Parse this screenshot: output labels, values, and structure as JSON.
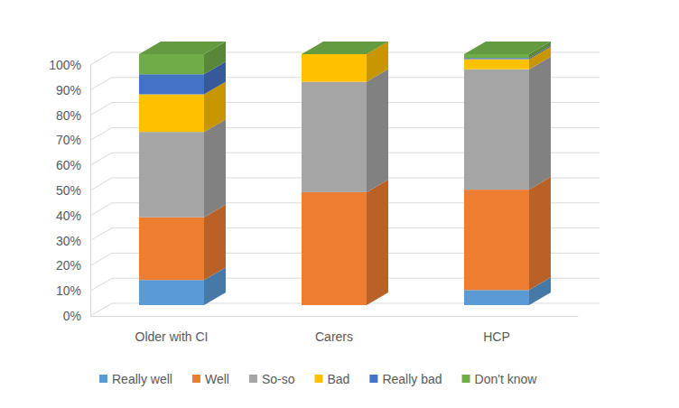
{
  "chart_data": {
    "type": "bar",
    "stacked": true,
    "grid": true,
    "legend": "bottom",
    "categories": [
      "Older with CI",
      "Carers",
      "HCP"
    ],
    "ylim": [
      0,
      100
    ],
    "yticks": [
      {
        "value": 0,
        "label": "0%"
      },
      {
        "value": 10,
        "label": "10%"
      },
      {
        "value": 20,
        "label": "20%"
      },
      {
        "value": 30,
        "label": "30%"
      },
      {
        "value": 40,
        "label": "40%"
      },
      {
        "value": 50,
        "label": "50%"
      },
      {
        "value": 60,
        "label": "60%"
      },
      {
        "value": 70,
        "label": "70%"
      },
      {
        "value": 80,
        "label": "80%"
      },
      {
        "value": 90,
        "label": "90%"
      },
      {
        "value": 100,
        "label": "100%"
      }
    ],
    "series": [
      {
        "name": "Really well",
        "color": "#5b9bd5",
        "values": [
          10,
          0,
          6
        ]
      },
      {
        "name": "Well",
        "color": "#ed7d31",
        "values": [
          25,
          45,
          40
        ]
      },
      {
        "name": "So-so",
        "color": "#a5a5a5",
        "values": [
          34,
          44,
          48
        ]
      },
      {
        "name": "Bad",
        "color": "#ffc000",
        "values": [
          15,
          11,
          4
        ]
      },
      {
        "name": "Really bad",
        "color": "#4472c4",
        "values": [
          8,
          0,
          0.5
        ]
      },
      {
        "name": "Don't know",
        "color": "#70ad47",
        "values": [
          8,
          0,
          1.5
        ]
      }
    ]
  }
}
